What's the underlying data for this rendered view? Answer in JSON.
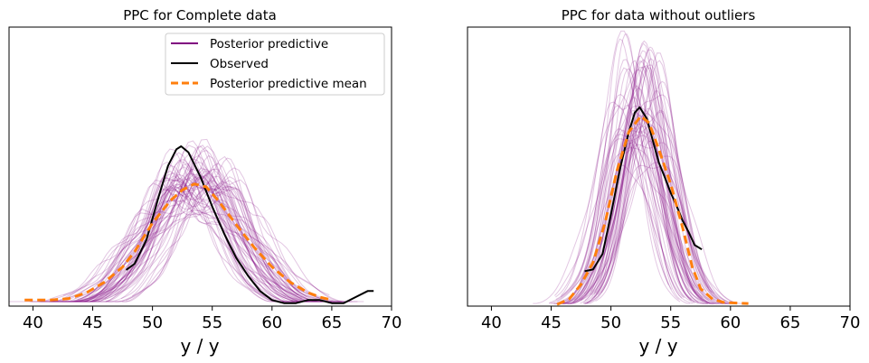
{
  "chart_data": [
    {
      "type": "line",
      "title": "PPC for Complete data",
      "xlabel": "y / y",
      "ylabel": "",
      "xlim": [
        38,
        70
      ],
      "ylim": [
        0,
        0.185
      ],
      "xticks": [
        "40",
        "45",
        "50",
        "55",
        "60",
        "65",
        "70"
      ],
      "show_y_ticks": false,
      "legend": {
        "placement": "top-right",
        "entries": [
          {
            "label": "Posterior predictive",
            "color": "#800080",
            "style": "solid"
          },
          {
            "label": "Observed",
            "color": "#000000",
            "style": "solid"
          },
          {
            "label": "Posterior predictive mean",
            "color": "#ff7f0e",
            "style": "dashed"
          }
        ]
      },
      "series": [
        {
          "name": "Observed",
          "color": "#000000",
          "style": "solid",
          "points": [
            [
              47.8,
              0.024
            ],
            [
              48.5,
              0.028
            ],
            [
              49.5,
              0.044
            ],
            [
              50.5,
              0.072
            ],
            [
              51.3,
              0.093
            ],
            [
              52.0,
              0.104
            ],
            [
              52.4,
              0.106
            ],
            [
              53.0,
              0.102
            ],
            [
              54.0,
              0.086
            ],
            [
              55.0,
              0.066
            ],
            [
              56.0,
              0.048
            ],
            [
              57.0,
              0.032
            ],
            [
              58.0,
              0.02
            ],
            [
              59.0,
              0.01
            ],
            [
              60.0,
              0.004
            ],
            [
              61.0,
              0.002
            ],
            [
              62.0,
              0.002
            ],
            [
              63.0,
              0.004
            ],
            [
              64.0,
              0.004
            ],
            [
              65.0,
              0.002
            ],
            [
              66.0,
              0.002
            ],
            [
              67.0,
              0.006
            ],
            [
              68.0,
              0.01
            ],
            [
              68.5,
              0.01
            ]
          ]
        },
        {
          "name": "Posterior predictive mean",
          "color": "#ff7f0e",
          "style": "dashed",
          "points": [
            [
              39.3,
              0.004
            ],
            [
              41.5,
              0.004
            ],
            [
              43.0,
              0.005
            ],
            [
              44.5,
              0.009
            ],
            [
              46.0,
              0.016
            ],
            [
              47.5,
              0.026
            ],
            [
              48.5,
              0.036
            ],
            [
              50.0,
              0.055
            ],
            [
              51.5,
              0.07
            ],
            [
              52.5,
              0.077
            ],
            [
              53.5,
              0.081
            ],
            [
              54.5,
              0.079
            ],
            [
              55.5,
              0.07
            ],
            [
              57.0,
              0.054
            ],
            [
              58.5,
              0.039
            ],
            [
              60.0,
              0.026
            ],
            [
              61.5,
              0.016
            ],
            [
              63.0,
              0.009
            ],
            [
              64.0,
              0.006
            ],
            [
              65.0,
              0.004
            ]
          ]
        }
      ],
      "samples": {
        "name": "Posterior predictive",
        "color": "#800080",
        "count": 60,
        "center_range": [
          51.8,
          55.6
        ],
        "peak_range": [
          0.068,
          0.1
        ]
      }
    },
    {
      "type": "line",
      "title": "PPC for data without outliers",
      "xlabel": "y / y",
      "ylabel": "",
      "xlim": [
        38,
        70
      ],
      "ylim": [
        0,
        0.32
      ],
      "xticks": [
        "40",
        "45",
        "50",
        "55",
        "60",
        "65",
        "70"
      ],
      "show_y_ticks": false,
      "series": [
        {
          "name": "Observed",
          "color": "#000000",
          "style": "solid",
          "points": [
            [
              47.8,
              0.04
            ],
            [
              48.5,
              0.042
            ],
            [
              49.3,
              0.06
            ],
            [
              50.0,
              0.105
            ],
            [
              50.8,
              0.16
            ],
            [
              51.5,
              0.2
            ],
            [
              52.0,
              0.222
            ],
            [
              52.4,
              0.228
            ],
            [
              53.0,
              0.215
            ],
            [
              53.5,
              0.19
            ],
            [
              54.0,
              0.165
            ],
            [
              54.5,
              0.148
            ],
            [
              55.0,
              0.13
            ],
            [
              55.5,
              0.115
            ],
            [
              56.0,
              0.098
            ],
            [
              56.5,
              0.085
            ],
            [
              57.0,
              0.07
            ],
            [
              57.6,
              0.065
            ]
          ]
        },
        {
          "name": "Posterior predictive mean",
          "color": "#ff7f0e",
          "style": "dashed",
          "points": [
            [
              45.5,
              0.002
            ],
            [
              46.5,
              0.008
            ],
            [
              47.5,
              0.025
            ],
            [
              48.5,
              0.05
            ],
            [
              49.5,
              0.095
            ],
            [
              50.5,
              0.155
            ],
            [
              51.5,
              0.2
            ],
            [
              52.5,
              0.218
            ],
            [
              53.2,
              0.21
            ],
            [
              54.0,
              0.18
            ],
            [
              55.0,
              0.14
            ],
            [
              56.0,
              0.09
            ],
            [
              56.8,
              0.045
            ],
            [
              57.5,
              0.02
            ],
            [
              58.5,
              0.008
            ],
            [
              59.5,
              0.004
            ],
            [
              61.5,
              0.003
            ]
          ]
        }
      ],
      "samples": {
        "name": "Posterior predictive",
        "color": "#800080",
        "count": 60,
        "center_range": [
          51.2,
          53.8
        ],
        "peak_range": [
          0.17,
          0.3
        ]
      }
    }
  ]
}
